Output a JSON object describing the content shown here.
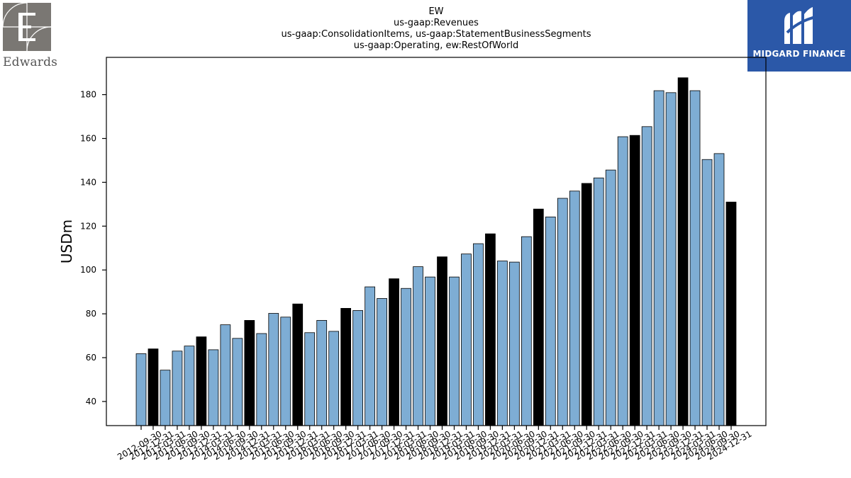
{
  "logos": {
    "left": {
      "name": "Edwards",
      "text": "Edwards",
      "color": "#7a7773"
    },
    "right": {
      "name": "Midgard Finance",
      "text": "MIDGARD FINANCE",
      "color": "#2b58a8"
    }
  },
  "chart_data": {
    "type": "bar",
    "title_lines": [
      "EW",
      "us-gaap:Revenues",
      "us-gaap:ConsolidationItems, us-gaap:StatementBusinessSegments",
      "us-gaap:Operating, ew:RestOfWorld"
    ],
    "ylabel": "USDm",
    "xlabel": "",
    "ylim": [
      29,
      197
    ],
    "yticks": [
      40,
      60,
      80,
      100,
      120,
      140,
      160,
      180
    ],
    "grid": false,
    "legend": "none",
    "colors": {
      "quarter": "#7eadd4",
      "annual": "#000000",
      "edge": "#000000"
    },
    "categories": [
      "2012-09-30",
      "2012-12-31",
      "2013-03-31",
      "2013-06-30",
      "2013-09-30",
      "2013-12-31",
      "2014-03-31",
      "2014-06-30",
      "2014-09-30",
      "2014-12-31",
      "2015-03-31",
      "2015-06-30",
      "2015-09-30",
      "2015-12-31",
      "2016-03-31",
      "2016-06-30",
      "2016-09-30",
      "2016-12-31",
      "2017-03-31",
      "2017-06-30",
      "2017-09-30",
      "2017-12-31",
      "2018-03-31",
      "2018-06-30",
      "2018-09-30",
      "2018-12-31",
      "2019-03-31",
      "2019-06-30",
      "2019-09-30",
      "2019-12-31",
      "2020-03-31",
      "2020-06-30",
      "2020-09-30",
      "2020-12-31",
      "2021-03-31",
      "2021-06-30",
      "2021-09-30",
      "2021-12-31",
      "2022-03-31",
      "2022-06-30",
      "2022-09-30",
      "2022-12-31",
      "2023-03-31",
      "2023-06-30",
      "2023-09-30",
      "2023-12-31",
      "2024-03-31",
      "2024-06-30",
      "2024-09-30",
      "2024-12-31"
    ],
    "values": [
      61.8,
      64.0,
      54.3,
      63.0,
      65.3,
      69.5,
      63.6,
      75.0,
      68.8,
      77.0,
      71.0,
      80.2,
      78.5,
      84.5,
      71.4,
      77.0,
      72.0,
      82.5,
      81.5,
      92.3,
      87.0,
      96.0,
      91.6,
      101.5,
      96.8,
      106.0,
      96.8,
      107.3,
      112.0,
      116.5,
      104.1,
      103.6,
      115.2,
      127.8,
      124.2,
      132.7,
      136.0,
      139.5,
      142.0,
      145.6,
      160.8,
      161.4,
      165.4,
      181.8,
      180.9,
      187.7,
      181.8,
      150.4,
      153.1,
      131.0
    ],
    "highlight": [
      false,
      true,
      false,
      false,
      false,
      true,
      false,
      false,
      false,
      true,
      false,
      false,
      false,
      true,
      false,
      false,
      false,
      true,
      false,
      false,
      false,
      true,
      false,
      false,
      false,
      true,
      false,
      false,
      false,
      true,
      false,
      false,
      false,
      true,
      false,
      false,
      false,
      true,
      false,
      false,
      false,
      true,
      false,
      false,
      false,
      true,
      false,
      false,
      false,
      true
    ]
  }
}
